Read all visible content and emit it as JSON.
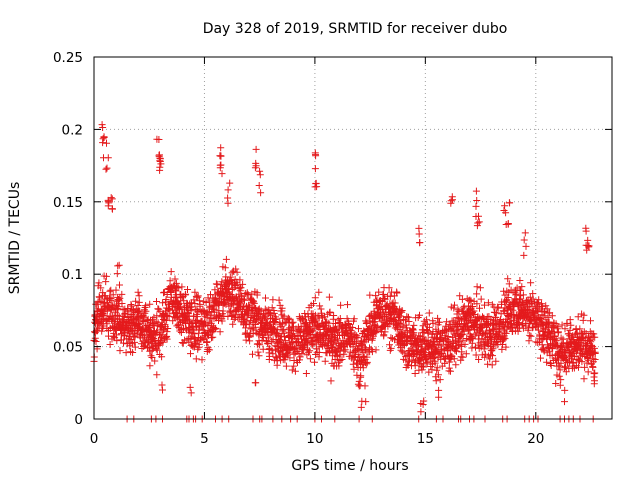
{
  "chart_data": {
    "type": "scatter",
    "title": "Day 328 of 2019, SRMTID for receiver dubo",
    "xlabel": "GPS time / hours",
    "ylabel": "SRMTID / TECUs",
    "xlim": [
      0,
      23.45
    ],
    "ylim": [
      0,
      0.25
    ],
    "grid": true,
    "x_ticks": [
      0,
      5,
      10,
      15,
      20
    ],
    "x_tick_labels": [
      "0",
      "5",
      "10",
      "15",
      "20"
    ],
    "y_ticks": [
      0,
      0.05,
      0.1,
      0.15,
      0.2,
      0.25
    ],
    "y_tick_labels": [
      "0",
      "0.05",
      "0.1",
      "0.15",
      "0.2",
      "0.25"
    ],
    "marker": "+",
    "series": [
      {
        "name": "SRMTID",
        "color": "#e41a1c",
        "baseline": [
          [
            0.0,
            0.068
          ],
          [
            0.5,
            0.078
          ],
          [
            1.0,
            0.068
          ],
          [
            1.5,
            0.065
          ],
          [
            2.0,
            0.067
          ],
          [
            2.5,
            0.055
          ],
          [
            3.0,
            0.06
          ],
          [
            3.5,
            0.085
          ],
          [
            4.0,
            0.07
          ],
          [
            4.5,
            0.066
          ],
          [
            5.0,
            0.064
          ],
          [
            5.5,
            0.075
          ],
          [
            6.0,
            0.09
          ],
          [
            6.5,
            0.082
          ],
          [
            7.0,
            0.072
          ],
          [
            7.5,
            0.066
          ],
          [
            8.0,
            0.062
          ],
          [
            8.5,
            0.058
          ],
          [
            9.0,
            0.052
          ],
          [
            9.5,
            0.055
          ],
          [
            10.0,
            0.062
          ],
          [
            10.5,
            0.058
          ],
          [
            11.0,
            0.055
          ],
          [
            11.5,
            0.06
          ],
          [
            12.0,
            0.04
          ],
          [
            12.5,
            0.06
          ],
          [
            13.0,
            0.075
          ],
          [
            13.5,
            0.072
          ],
          [
            14.0,
            0.058
          ],
          [
            14.5,
            0.05
          ],
          [
            15.0,
            0.052
          ],
          [
            15.5,
            0.048
          ],
          [
            16.0,
            0.05
          ],
          [
            16.5,
            0.06
          ],
          [
            17.0,
            0.068
          ],
          [
            17.5,
            0.062
          ],
          [
            18.0,
            0.058
          ],
          [
            18.5,
            0.066
          ],
          [
            19.0,
            0.078
          ],
          [
            19.5,
            0.076
          ],
          [
            20.0,
            0.068
          ],
          [
            20.5,
            0.062
          ],
          [
            21.0,
            0.045
          ],
          [
            21.5,
            0.05
          ],
          [
            22.0,
            0.052
          ],
          [
            22.5,
            0.048
          ],
          [
            22.7,
            0.045
          ]
        ],
        "spikes": [
          [
            0.4,
            0.21
          ],
          [
            0.4,
            0.2
          ],
          [
            0.6,
            0.191
          ],
          [
            0.7,
            0.165
          ],
          [
            0.8,
            0.158
          ],
          [
            1.1,
            0.11
          ],
          [
            2.9,
            0.195
          ],
          [
            2.95,
            0.19
          ],
          [
            3.0,
            0.185
          ],
          [
            5.7,
            0.193
          ],
          [
            5.75,
            0.185
          ],
          [
            6.1,
            0.165
          ],
          [
            7.3,
            0.188
          ],
          [
            7.5,
            0.176
          ],
          [
            10.0,
            0.185
          ],
          [
            10.05,
            0.18
          ],
          [
            16.2,
            0.154
          ],
          [
            17.3,
            0.158
          ],
          [
            17.4,
            0.15
          ],
          [
            18.6,
            0.154
          ],
          [
            18.8,
            0.15
          ],
          [
            19.5,
            0.13
          ],
          [
            22.3,
            0.135
          ],
          [
            22.4,
            0.126
          ],
          [
            14.7,
            0.135
          ]
        ],
        "dips": [
          [
            12.1,
            0.008
          ],
          [
            12.3,
            0.012
          ],
          [
            14.8,
            0.005
          ],
          [
            14.9,
            0.01
          ],
          [
            15.6,
            0.015
          ],
          [
            4.4,
            0.018
          ],
          [
            3.1,
            0.02
          ],
          [
            21.3,
            0.012
          ],
          [
            7.3,
            0.025
          ]
        ],
        "zero_hours": [
          1.5,
          1.8,
          2.6,
          2.8,
          3.1,
          4.2,
          4.3,
          4.5,
          4.6,
          4.9,
          5.5,
          5.8,
          6.1,
          7.2,
          7.5,
          7.6,
          8.1,
          8.5,
          8.9,
          9.2,
          10.0,
          10.3,
          10.9,
          12.0,
          12.6,
          14.7,
          15.5,
          15.8,
          16.5,
          16.6,
          17.0,
          17.2,
          17.7,
          18.5,
          18.7,
          19.5,
          19.7,
          19.9,
          20.1,
          21.1,
          21.3,
          21.5,
          21.7,
          22.0,
          22.6
        ]
      }
    ]
  }
}
